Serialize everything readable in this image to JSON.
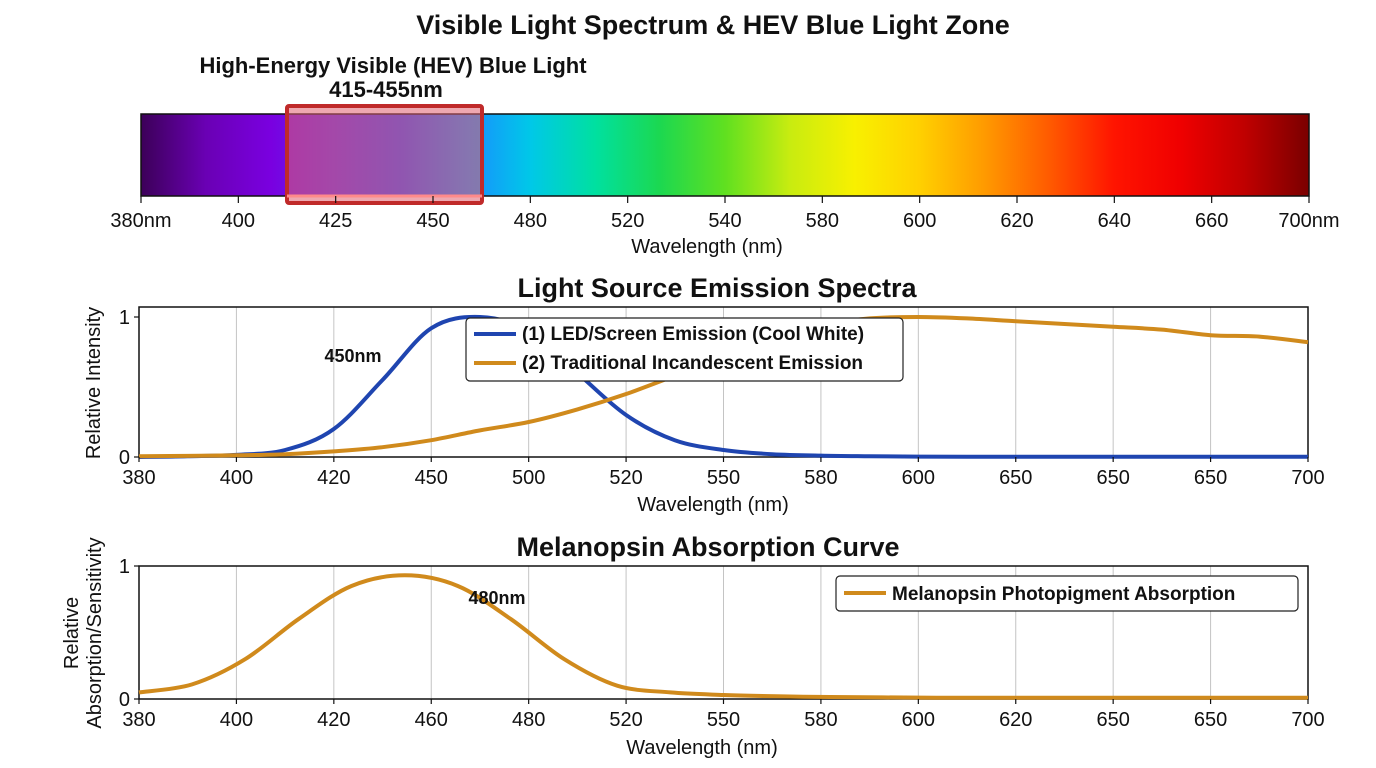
{
  "title": "Visible Light Spectrum & HEV Blue Light Zone",
  "chart_data": [
    {
      "type": "spectrum-bar",
      "hev_label": "High-Energy Visible (HEV) Blue Light",
      "hev_range_label": "415-455nm",
      "xlabel": "Wavelength (nm)",
      "tick_labels": [
        "380nm",
        "400",
        "425",
        "450",
        "480",
        "520",
        "540",
        "580",
        "600",
        "620",
        "640",
        "660",
        "700nm"
      ],
      "colors": [
        "#3c0058",
        "#6a00b4",
        "#7a00e0",
        "#5a2cf0",
        "#3048ff",
        "#1a8cff",
        "#00c8e8",
        "#00e0a0",
        "#1cd850",
        "#60e020",
        "#c8ec10",
        "#f8f000",
        "#ffd000",
        "#ff9a00",
        "#ff5a00",
        "#ff1400",
        "#f00000",
        "#c00000",
        "#7a0000"
      ]
    },
    {
      "type": "line",
      "title": "Light Source Emission Spectra",
      "xlabel": "Wavelength (nm)",
      "ylabel": "Relative Intensity",
      "ylim": [
        0,
        1
      ],
      "y_tick_labels": [
        "0",
        "1"
      ],
      "x_tick_labels": [
        "380",
        "400",
        "420",
        "450",
        "500",
        "520",
        "550",
        "580",
        "600",
        "650",
        "650",
        "650",
        "700"
      ],
      "peak_label": "450nm",
      "legend_position": "top-center",
      "series": [
        {
          "name": "(1) LED/Screen Emission (Cool White)",
          "color": "#1f45b0",
          "values": [
            0,
            0.005,
            0.015,
            0.05,
            0.2,
            0.55,
            0.92,
            1.0,
            0.9,
            0.6,
            0.3,
            0.12,
            0.05,
            0.02,
            0.01,
            0.005,
            0.003,
            0.002,
            0.002,
            0.002,
            0.002,
            0.002,
            0.002,
            0.002,
            0.002
          ]
        },
        {
          "name": "(2) Traditional Incandescent Emission",
          "color": "#d08a1c",
          "values": [
            0.005,
            0.008,
            0.012,
            0.02,
            0.04,
            0.07,
            0.12,
            0.19,
            0.25,
            0.34,
            0.45,
            0.58,
            0.71,
            0.84,
            0.94,
            0.99,
            1.0,
            0.99,
            0.97,
            0.95,
            0.93,
            0.91,
            0.87,
            0.86,
            0.82
          ]
        }
      ]
    },
    {
      "type": "line",
      "title": "Melanopsin Absorption Curve",
      "xlabel": "Wavelength (nm)",
      "ylabel": "Relative Absorption/Sensitivity",
      "ylim": [
        0,
        1
      ],
      "y_tick_labels": [
        "0",
        "1"
      ],
      "x_tick_labels": [
        "380",
        "400",
        "420",
        "460",
        "480",
        "520",
        "550",
        "580",
        "600",
        "620",
        "650",
        "650",
        "700"
      ],
      "peak_label": "480nm",
      "legend_position": "top-right",
      "series": [
        {
          "name": "Melanopsin Photopigment Absorption",
          "color": "#d08a1c",
          "values": [
            0.05,
            0.11,
            0.3,
            0.6,
            0.85,
            0.93,
            0.85,
            0.6,
            0.3,
            0.1,
            0.05,
            0.03,
            0.02,
            0.015,
            0.012,
            0.01,
            0.01,
            0.01,
            0.01,
            0.01,
            0.01,
            0.01,
            0.01
          ]
        }
      ]
    }
  ]
}
